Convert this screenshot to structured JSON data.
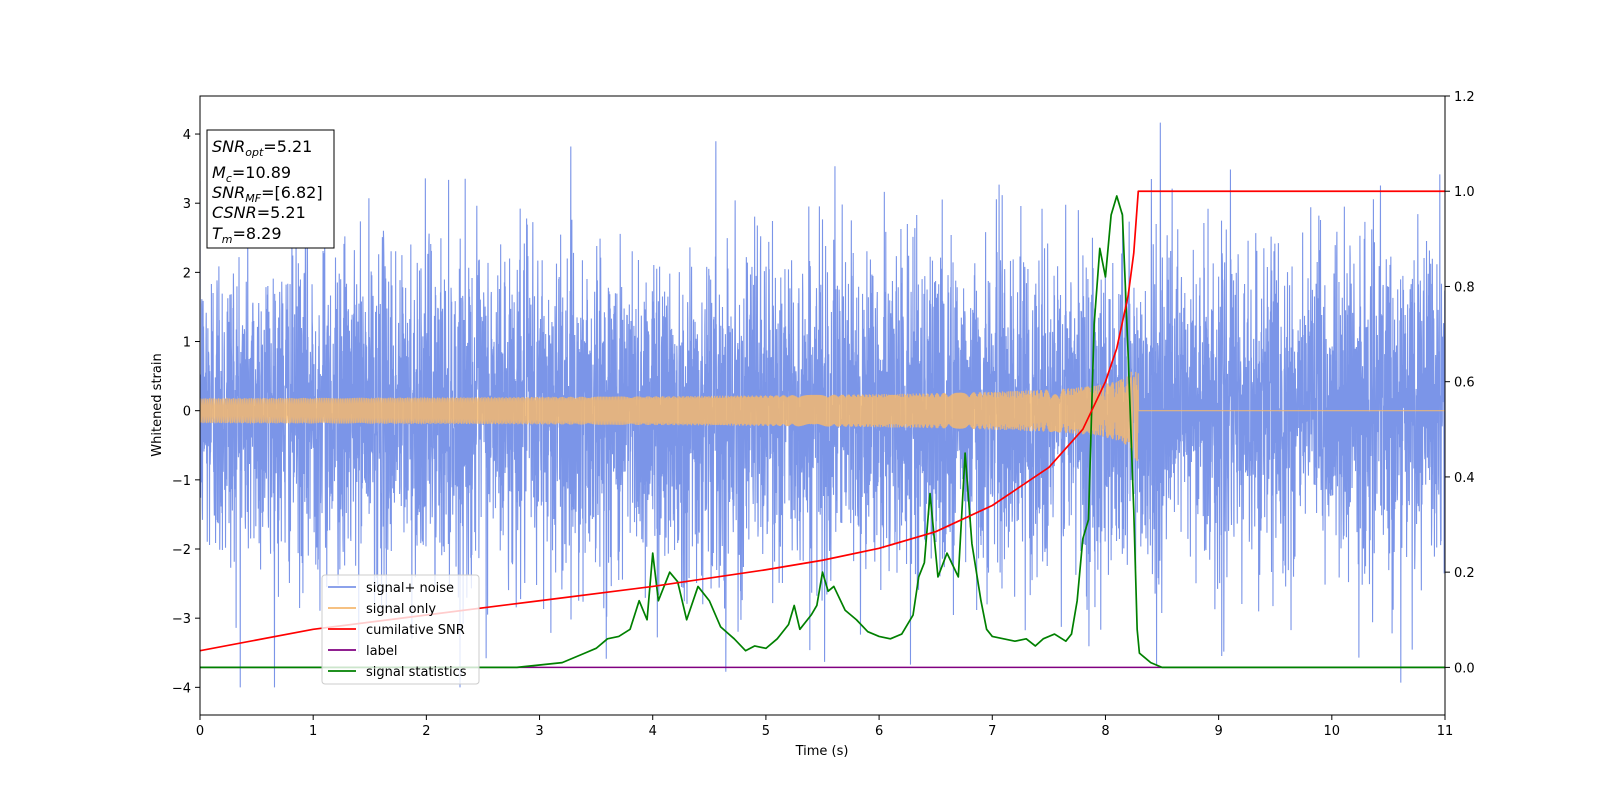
{
  "chart_data": {
    "type": "line",
    "title": "",
    "xlabel": "Time (s)",
    "ylabel": "Whitened strain",
    "xlim": [
      0,
      11
    ],
    "ylim_left": [
      -4.4,
      4.55
    ],
    "ylim_right": [
      -0.1,
      1.2
    ],
    "x_ticks": [
      "0",
      "1",
      "2",
      "3",
      "4",
      "5",
      "6",
      "7",
      "8",
      "9",
      "10",
      "11"
    ],
    "y_left_ticks": [
      "−4",
      "−3",
      "−2",
      "−1",
      "0",
      "1",
      "2",
      "3",
      "4"
    ],
    "y_right_ticks": [
      "0.0",
      "0.2",
      "0.4",
      "0.6",
      "0.8",
      "1.0",
      "1.2"
    ],
    "grid": false,
    "legend_position": "lower-left",
    "annotation": {
      "lines": [
        {
          "base": "SNR",
          "sub": "opt",
          "value": "=5.21"
        },
        {
          "base": "M",
          "sub": "c",
          "value": "=10.89"
        },
        {
          "base": "SNR",
          "sub": "MF",
          "value": "=[6.82]"
        },
        {
          "base": "CSNR",
          "sub": "",
          "value": "=5.21"
        },
        {
          "base": "T",
          "sub": "m",
          "value": "=8.29"
        }
      ]
    },
    "merger_time": 8.29,
    "series": [
      {
        "name": "signal+ noise",
        "color": "#7b95e8",
        "axis": "left",
        "noise_std": 1.15,
        "extremes": [
          4.17,
          -4.0
        ]
      },
      {
        "name": "signal only",
        "color": "#f5b870",
        "axis": "left",
        "chirp_peak_amplitude": 0.8
      },
      {
        "name": "cumilative SNR",
        "color": "#ff0000",
        "axis": "right",
        "x": [
          0,
          1,
          2,
          3,
          4,
          5,
          5.5,
          6,
          6.5,
          7,
          7.5,
          7.8,
          8.0,
          8.1,
          8.2,
          8.25,
          8.29,
          11
        ],
        "y": [
          0.035,
          0.08,
          0.11,
          0.14,
          0.17,
          0.205,
          0.225,
          0.25,
          0.285,
          0.34,
          0.42,
          0.5,
          0.6,
          0.67,
          0.78,
          0.87,
          1.0,
          1.0
        ]
      },
      {
        "name": "label",
        "color": "#800080",
        "axis": "right",
        "x": [
          0,
          11
        ],
        "y": [
          0.0,
          0.0
        ]
      },
      {
        "name": "signal statistics",
        "color": "#008000",
        "axis": "right",
        "x": [
          0,
          2.8,
          3.0,
          3.2,
          3.3,
          3.4,
          3.5,
          3.6,
          3.7,
          3.8,
          3.88,
          3.95,
          4.0,
          4.05,
          4.15,
          4.22,
          4.3,
          4.4,
          4.5,
          4.6,
          4.72,
          4.82,
          4.9,
          5.0,
          5.1,
          5.2,
          5.25,
          5.3,
          5.4,
          5.45,
          5.5,
          5.55,
          5.6,
          5.7,
          5.8,
          5.9,
          6.0,
          6.1,
          6.2,
          6.3,
          6.35,
          6.4,
          6.45,
          6.52,
          6.6,
          6.7,
          6.76,
          6.82,
          6.9,
          6.95,
          7.0,
          7.1,
          7.2,
          7.3,
          7.38,
          7.45,
          7.55,
          7.65,
          7.7,
          7.75,
          7.8,
          7.85,
          7.9,
          7.95,
          8.0,
          8.05,
          8.1,
          8.15,
          8.2,
          8.25,
          8.28,
          8.3,
          8.4,
          8.5,
          8.6,
          8.8,
          11
        ],
        "y": [
          0.0,
          0.0,
          0.005,
          0.01,
          0.02,
          0.03,
          0.04,
          0.06,
          0.065,
          0.08,
          0.14,
          0.1,
          0.24,
          0.14,
          0.2,
          0.18,
          0.1,
          0.17,
          0.14,
          0.085,
          0.06,
          0.035,
          0.045,
          0.04,
          0.06,
          0.09,
          0.13,
          0.08,
          0.11,
          0.13,
          0.2,
          0.16,
          0.17,
          0.12,
          0.1,
          0.075,
          0.065,
          0.06,
          0.07,
          0.11,
          0.19,
          0.22,
          0.365,
          0.19,
          0.24,
          0.19,
          0.45,
          0.26,
          0.14,
          0.08,
          0.065,
          0.06,
          0.055,
          0.06,
          0.045,
          0.06,
          0.07,
          0.055,
          0.07,
          0.14,
          0.27,
          0.31,
          0.72,
          0.88,
          0.82,
          0.95,
          0.99,
          0.95,
          0.66,
          0.33,
          0.08,
          0.03,
          0.01,
          0.0,
          0.0,
          0.0,
          0.0
        ]
      }
    ]
  }
}
